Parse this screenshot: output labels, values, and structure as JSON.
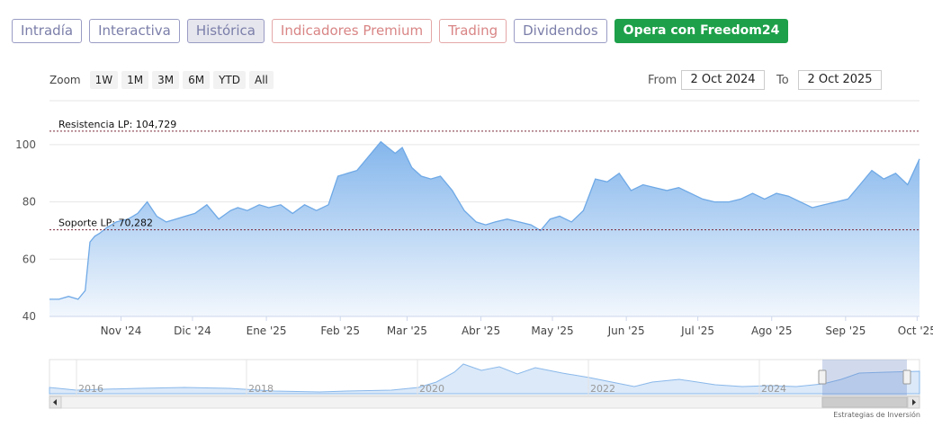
{
  "tabs": [
    {
      "label": "Intradía",
      "style": "normal"
    },
    {
      "label": "Interactiva",
      "style": "normal"
    },
    {
      "label": "Histórica",
      "style": "active"
    },
    {
      "label": "Indicadores Premium",
      "style": "premium"
    },
    {
      "label": "Trading",
      "style": "premium"
    },
    {
      "label": "Dividendos",
      "style": "normal"
    },
    {
      "label": "Opera con Freedom24",
      "style": "cta"
    }
  ],
  "zoom": {
    "label": "Zoom",
    "buttons": [
      "1W",
      "1M",
      "3M",
      "6M",
      "YTD",
      "All"
    ]
  },
  "range": {
    "from_label": "From",
    "from_value": "2 Oct 2024",
    "to_label": "To",
    "to_value": "2 Oct 2025"
  },
  "colors": {
    "line": "#6fa9e6",
    "area_top": "#84b6ec",
    "area_bottom": "#f2f7fd",
    "level_line": "#7a2a3a"
  },
  "chart_data": {
    "type": "area",
    "title": "",
    "xlabel": "",
    "ylabel": "",
    "x_range": [
      "2024-10-02",
      "2025-10-02"
    ],
    "ylim": [
      40,
      105
    ],
    "y_ticks": [
      "40",
      "60",
      "80",
      "100"
    ],
    "grid": true,
    "x_ticks": [
      {
        "label": "Nov '24",
        "date": "2024-11-01"
      },
      {
        "label": "Dic '24",
        "date": "2024-12-01"
      },
      {
        "label": "Ene '25",
        "date": "2025-01-01"
      },
      {
        "label": "Feb '25",
        "date": "2025-02-01"
      },
      {
        "label": "Mar '25",
        "date": "2025-03-01"
      },
      {
        "label": "Abr '25",
        "date": "2025-04-01"
      },
      {
        "label": "May '25",
        "date": "2025-05-01"
      },
      {
        "label": "Jun '25",
        "date": "2025-06-01"
      },
      {
        "label": "Jul '25",
        "date": "2025-07-01"
      },
      {
        "label": "Ago '25",
        "date": "2025-08-01"
      },
      {
        "label": "Sep '25",
        "date": "2025-09-01"
      },
      {
        "label": "Oct '25",
        "date": "2025-10-01"
      }
    ],
    "levels": [
      {
        "label": "Resistencia LP: 104,729",
        "value": 104.729
      },
      {
        "label": "Soporte LP: 70,282",
        "value": 70.282
      }
    ],
    "series": [
      {
        "x": [
          "2024-10-02",
          "2024-10-06",
          "2024-10-10",
          "2024-10-14",
          "2024-10-17",
          "2024-10-19",
          "2024-10-21",
          "2024-10-23",
          "2024-10-26",
          "2024-10-30",
          "2024-11-04",
          "2024-11-08",
          "2024-11-12",
          "2024-11-16",
          "2024-11-20",
          "2024-11-24",
          "2024-11-28",
          "2024-12-02",
          "2024-12-07",
          "2024-12-12",
          "2024-12-17",
          "2024-12-20",
          "2024-12-24",
          "2024-12-29",
          "2025-01-02",
          "2025-01-07",
          "2025-01-12",
          "2025-01-17",
          "2025-01-22",
          "2025-01-27",
          "2025-01-31",
          "2025-02-04",
          "2025-02-08",
          "2025-02-13",
          "2025-02-18",
          "2025-02-21",
          "2025-02-24",
          "2025-02-27",
          "2025-03-03",
          "2025-03-07",
          "2025-03-11",
          "2025-03-15",
          "2025-03-20",
          "2025-03-25",
          "2025-03-30",
          "2025-04-03",
          "2025-04-07",
          "2025-04-12",
          "2025-04-17",
          "2025-04-22",
          "2025-04-26",
          "2025-04-30",
          "2025-05-04",
          "2025-05-09",
          "2025-05-14",
          "2025-05-19",
          "2025-05-24",
          "2025-05-29",
          "2025-06-03",
          "2025-06-08",
          "2025-06-13",
          "2025-06-18",
          "2025-06-23",
          "2025-06-28",
          "2025-07-03",
          "2025-07-08",
          "2025-07-14",
          "2025-07-19",
          "2025-07-24",
          "2025-07-29",
          "2025-08-03",
          "2025-08-08",
          "2025-08-13",
          "2025-08-18",
          "2025-08-23",
          "2025-08-28",
          "2025-09-02",
          "2025-09-07",
          "2025-09-12",
          "2025-09-17",
          "2025-09-22",
          "2025-09-27",
          "2025-10-02"
        ],
        "y": [
          46,
          46,
          47,
          46,
          49,
          66,
          68,
          69,
          71,
          73,
          74,
          76,
          80,
          75,
          73,
          74,
          75,
          76,
          79,
          74,
          77,
          78,
          77,
          79,
          78,
          79,
          76,
          79,
          77,
          79,
          89,
          90,
          91,
          96,
          101,
          99,
          97,
          99,
          92,
          89,
          88,
          89,
          84,
          77,
          73,
          72,
          73,
          74,
          73,
          72,
          70,
          74,
          75,
          73,
          77,
          88,
          87,
          90,
          84,
          86,
          85,
          84,
          85,
          83,
          81,
          80,
          80,
          81,
          83,
          81,
          83,
          82,
          80,
          78,
          79,
          80,
          81,
          86,
          91,
          88,
          90,
          86,
          95
        ]
      }
    ]
  },
  "navigator": {
    "year_labels": [
      "2016",
      "2018",
      "2020",
      "2022",
      "2024"
    ],
    "credit": "Estrategias de Inversión"
  }
}
